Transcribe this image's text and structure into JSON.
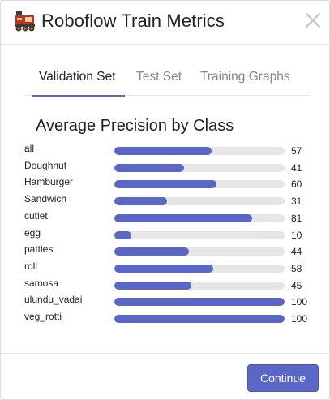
{
  "header": {
    "title": "Roboflow Train Metrics",
    "icon": "locomotive-icon",
    "close_icon": "close-icon"
  },
  "tabs": [
    {
      "label": "Validation Set",
      "active": true
    },
    {
      "label": "Test Set",
      "active": false
    },
    {
      "label": "Training Graphs",
      "active": false
    }
  ],
  "section": {
    "title": "Average Precision by Class"
  },
  "chart_data": {
    "type": "bar",
    "orientation": "horizontal",
    "title": "Average Precision by Class",
    "categories": [
      "all",
      "Doughnut",
      "Hamburger",
      "Sandwich",
      "cutlet",
      "egg",
      "patties",
      "roll",
      "samosa",
      "ulundu_vadai",
      "veg_rotti"
    ],
    "values": [
      57,
      41,
      60,
      31,
      81,
      10,
      44,
      58,
      45,
      100,
      100
    ],
    "xlim": [
      0,
      100
    ],
    "bar_color": "#5b67c6",
    "track_color": "#e6e6e6",
    "grid": false
  },
  "footer": {
    "continue_label": "Continue"
  },
  "colors": {
    "accent": "#5b67c6",
    "text": "#1d2129",
    "muted": "#7d8a99"
  }
}
